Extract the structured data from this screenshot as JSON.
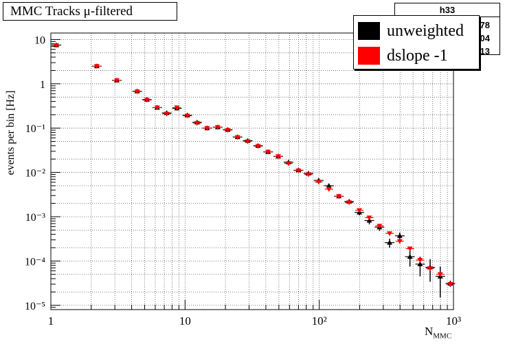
{
  "chart_data": {
    "type": "scatter",
    "title": "MMC Tracks μ-filtered",
    "xlabel": "N",
    "xlabel_sub": "MMC",
    "ylabel": "events per bin [Hz]",
    "xscale": "log",
    "yscale": "log",
    "xlim": [
      1,
      1000
    ],
    "ylim": [
      8e-06,
      14
    ],
    "grid": true,
    "x_ticks": [
      "1",
      "10",
      "10²",
      "10³"
    ],
    "y_ticks": [
      "10",
      "1",
      "10⁻¹",
      "10⁻²",
      "10⁻³",
      "10⁻⁴",
      "10⁻⁵"
    ],
    "legend_position": "top-right",
    "stats_box": {
      "name": "h33",
      "visible_fragments": [
        "78",
        "04",
        "13"
      ]
    },
    "series": [
      {
        "name": "unweighted",
        "color": "#000000",
        "marker": "triangle-up",
        "points": [
          [
            1.1,
            7.5
          ],
          [
            2.2,
            2.5
          ],
          [
            3.1,
            1.2
          ],
          [
            4.4,
            0.68
          ],
          [
            5.2,
            0.44
          ],
          [
            6.2,
            0.29
          ],
          [
            7.3,
            0.22
          ],
          [
            8.7,
            0.28
          ],
          [
            10.4,
            0.195
          ],
          [
            12.3,
            0.135
          ],
          [
            14.6,
            0.1
          ],
          [
            17.5,
            0.105
          ],
          [
            20.8,
            0.092
          ],
          [
            24.6,
            0.063
          ],
          [
            29.3,
            0.052
          ],
          [
            35,
            0.04
          ],
          [
            41.6,
            0.029
          ],
          [
            49.5,
            0.023
          ],
          [
            59,
            0.017
          ],
          [
            70,
            0.0112
          ],
          [
            83,
            0.0095
          ],
          [
            99,
            0.0066
          ],
          [
            118,
            0.005
          ],
          [
            140,
            0.0029
          ],
          [
            167,
            0.0022
          ],
          [
            199,
            0.00125
          ],
          [
            236,
            0.00082
          ],
          [
            281,
            0.00058
          ],
          [
            334,
            0.00026
          ],
          [
            398,
            0.00037
          ],
          [
            474,
            0.000125
          ],
          [
            564,
            8.5e-05
          ],
          [
            670,
            7.2e-05
          ],
          [
            797,
            4.5e-05
          ],
          [
            948,
            3.1e-05
          ]
        ],
        "errors": [
          0.3,
          0.1,
          0.08,
          0.06,
          0.04,
          0.03,
          0.025,
          0.03,
          0.02,
          0.012,
          0.008,
          0.008,
          0.007,
          0.005,
          0.004,
          0.003,
          0.0025,
          0.002,
          0.0015,
          0.0009,
          0.0008,
          0.0006,
          0.0005,
          0.0003,
          0.0002,
          0.00018,
          0.00015,
          0.0001,
          6e-05,
          7e-05,
          5e-05,
          4e-05,
          3.8e-05,
          3e-05,
          5e-06
        ]
      },
      {
        "name": "dslope -1",
        "color": "#ff0000",
        "marker": "triangle-down",
        "points": [
          [
            1.1,
            7.4
          ],
          [
            2.2,
            2.5
          ],
          [
            3.1,
            1.2
          ],
          [
            4.4,
            0.67
          ],
          [
            5.2,
            0.43
          ],
          [
            6.2,
            0.29
          ],
          [
            7.3,
            0.21
          ],
          [
            8.7,
            0.29
          ],
          [
            10.4,
            0.19
          ],
          [
            12.3,
            0.13
          ],
          [
            14.6,
            0.1
          ],
          [
            17.5,
            0.105
          ],
          [
            20.8,
            0.09
          ],
          [
            24.6,
            0.062
          ],
          [
            29.3,
            0.05
          ],
          [
            35,
            0.039
          ],
          [
            41.6,
            0.029
          ],
          [
            49.5,
            0.023
          ],
          [
            59,
            0.016
          ],
          [
            70,
            0.011
          ],
          [
            83,
            0.009
          ],
          [
            99,
            0.0061
          ],
          [
            118,
            0.0042
          ],
          [
            140,
            0.0029
          ],
          [
            167,
            0.0021
          ],
          [
            199,
            0.0014
          ],
          [
            236,
            0.00095
          ],
          [
            281,
            0.00062
          ],
          [
            334,
            0.00042
          ],
          [
            398,
            0.00028
          ],
          [
            474,
            0.00019
          ],
          [
            564,
            0.000105
          ],
          [
            670,
            6.8e-05
          ],
          [
            797,
            5e-05
          ],
          [
            948,
            3e-05
          ]
        ]
      }
    ]
  }
}
